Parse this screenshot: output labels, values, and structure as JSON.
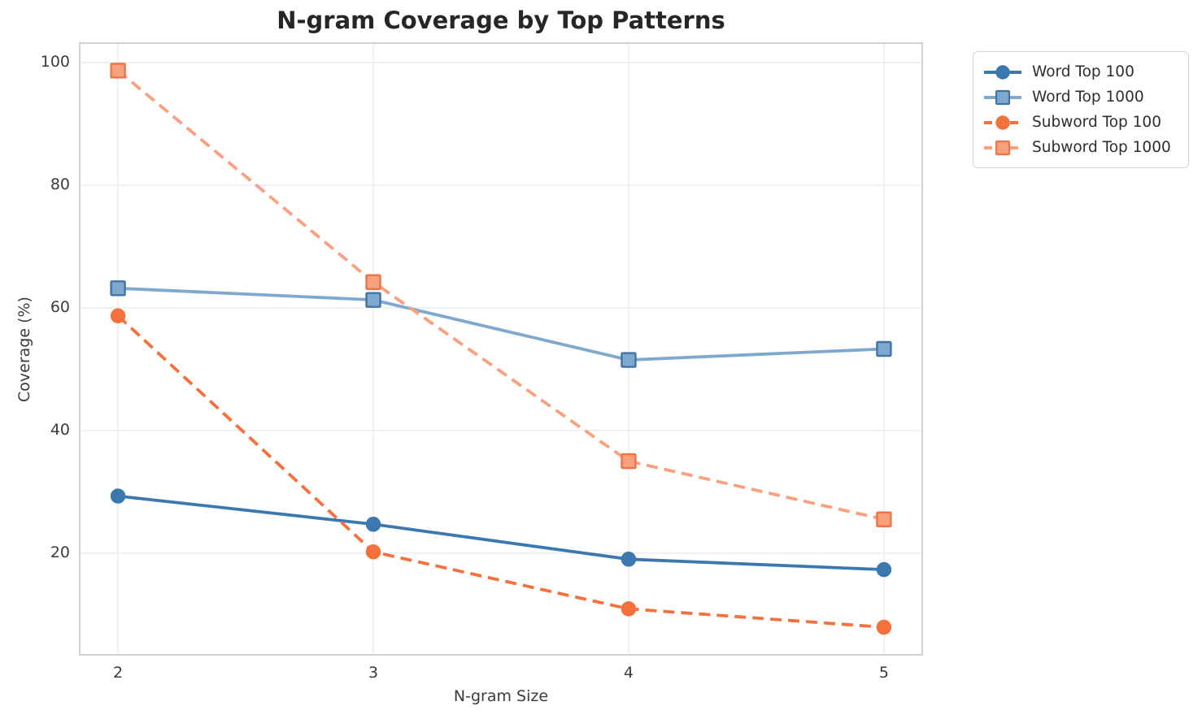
{
  "figure": {
    "background": "#ffffff"
  },
  "chart_data": {
    "type": "line",
    "title": "N-gram Coverage by Top Patterns",
    "xlabel": "N-gram Size",
    "ylabel": "Coverage (%)",
    "x": [
      2,
      3,
      4,
      5
    ],
    "xticks": [
      "2",
      "3",
      "4",
      "5"
    ],
    "yticks": [
      20,
      40,
      60,
      80,
      100
    ],
    "xlim": [
      1.85,
      5.15
    ],
    "ylim": [
      3.4,
      103.2
    ],
    "grid": true,
    "legend_position": "outside-upper-right",
    "series": [
      {
        "name": "Word Top 100",
        "values": [
          29.3,
          24.7,
          19.0,
          17.3
        ],
        "color": "#3c78b0",
        "marker": "circle",
        "marker_edge": "#3c78b0",
        "linestyle": "solid"
      },
      {
        "name": "Word Top 1000",
        "values": [
          63.2,
          61.3,
          51.5,
          53.3
        ],
        "color": "#7fa8cf",
        "marker": "square",
        "marker_edge": "#3f74a6",
        "linestyle": "solid"
      },
      {
        "name": "Subword Top 100",
        "values": [
          58.7,
          20.2,
          10.9,
          7.9
        ],
        "color": "#f4703c",
        "marker": "circle",
        "marker_edge": "#f4703c",
        "linestyle": "dashed"
      },
      {
        "name": "Subword Top 1000",
        "values": [
          98.7,
          64.2,
          35.0,
          25.5
        ],
        "color": "#f9a07e",
        "marker": "square",
        "marker_edge": "#ef7347",
        "linestyle": "dashed"
      }
    ]
  },
  "colors": {
    "grid": "#ededed",
    "spine": "#d2d2d2",
    "title": "#262626",
    "tick_label": "#3b3b3b",
    "axis_label": "#3b3b3b",
    "legend_border": "#d4d4d4",
    "legend_text": "#2e2e2e",
    "background": "#ffffff"
  }
}
